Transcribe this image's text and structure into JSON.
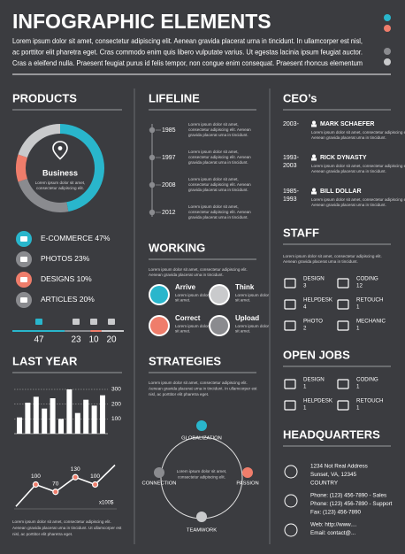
{
  "header": {
    "title": "INFOGRAPHIC ELEMENTS",
    "lines": [
      "Lorem ipsum dolor sit amet, consectetur adipiscing elit. Aenean gravida placerat urna in tincidunt. In ullamcorper est nisl,",
      "ac porttitor elit pharetra eget. Cras commodo enim quis libero vulputate varius. Ut egestas lacinia ipsum feugiat auctor.",
      "Cras a eleifend nulla. Praesent feugiat purus id felis tempor, non congue enim consequat. Praesent rhoncus elementum"
    ]
  },
  "products": {
    "title": "PRODUCTS",
    "center_label": "Business",
    "center_text": [
      "Lorem ipsum dolor sit amet,",
      "consectetur adipiscing elit."
    ],
    "items": [
      {
        "name": "E-COMMERCE",
        "value": 47,
        "value_label": "47%",
        "color": "#29b6cc"
      },
      {
        "name": "PHOTOS",
        "value": 23,
        "value_label": "23%",
        "color": "#8a8b8f"
      },
      {
        "name": "DESIGNS",
        "value": 10,
        "value_label": "10%",
        "color": "#ef7d6b"
      },
      {
        "name": "ARTICLES",
        "value": 20,
        "value_label": "20%",
        "color": "#c9cacc"
      }
    ]
  },
  "lifeline": {
    "title": "LIFELINE",
    "events": [
      {
        "year": "1985",
        "text": [
          "Lorem ipsum dolor sit amet,",
          "consectetur adipiscing elit. Aenean",
          "gravida placerat urna in tincidunt."
        ]
      },
      {
        "year": "1997",
        "text": [
          "Lorem ipsum dolor sit amet,",
          "consectetur adipiscing elit. Aenean",
          "gravida placerat urna in tincidunt."
        ]
      },
      {
        "year": "2008",
        "text": [
          "Lorem ipsum dolor sit amet,",
          "consectetur adipiscing elit. Aenean",
          "gravida placerat urna in tincidunt."
        ]
      },
      {
        "year": "2012",
        "text": [
          "Lorem ipsum dolor sit amet,",
          "consectetur adipiscing elit. Aenean",
          "gravida placerat urna in tincidunt."
        ]
      }
    ]
  },
  "ceos": {
    "title": "CEO’s",
    "entries": [
      {
        "years": [
          "2003-"
        ],
        "name": "MARK SCHAEFER",
        "text": [
          "Lorem ipsum dolor sit amet, consectetur adipiscing elit.",
          "Aenean gravida placerat urna in tincidunt."
        ]
      },
      {
        "years": [
          "1993-",
          "2003"
        ],
        "name": "RICK DYNASTY",
        "text": [
          "Lorem ipsum dolor sit amet, consectetur adipiscing elit.",
          "Aenean gravida placerat urna in tincidunt."
        ]
      },
      {
        "years": [
          "1985-",
          "1993"
        ],
        "name": "BILL DOLLAR",
        "text": [
          "Lorem ipsum dolor sit amet, consectetur adipiscing elit.",
          "Aenean gravida placerat urna in tincidunt."
        ]
      }
    ]
  },
  "working": {
    "title": "WORKING",
    "text": [
      "Lorem ipsum dolor sit amet, consectetur adipiscing elit.",
      "Aenean gravida placerat urna in tincidunt."
    ],
    "items": [
      {
        "label": "Arrive",
        "color": "#29b6cc",
        "text": [
          "Lorem ipsum dolor",
          "sit amet."
        ]
      },
      {
        "label": "Think",
        "color": "#c9cacc",
        "text": [
          "Lorem ipsum dolor",
          "sit amet."
        ]
      },
      {
        "label": "Correct",
        "color": "#ef7d6b",
        "text": [
          "Lorem ipsum dolor",
          "sit amet."
        ]
      },
      {
        "label": "Upload",
        "color": "#8a8b8f",
        "text": [
          "Lorem ipsum dolor",
          "sit amet."
        ]
      }
    ]
  },
  "staff": {
    "title": "STAFF",
    "text": [
      "Lorem ipsum dolor sit amet, consectetur adipiscing elit.",
      "Aenean gravida placerat urna in tincidunt."
    ],
    "roles": [
      {
        "name": "DESIGN",
        "count": 3
      },
      {
        "name": "CODING",
        "count": 12
      },
      {
        "name": "HELPDESK",
        "count": 4
      },
      {
        "name": "RETOUCH",
        "count": 1
      },
      {
        "name": "PHOTO",
        "count": 2
      },
      {
        "name": "MECHANIC",
        "count": 1
      }
    ]
  },
  "last_year": {
    "title": "LAST YEAR",
    "bars": {
      "values": [
        110,
        210,
        250,
        170,
        240,
        100,
        300,
        140,
        230,
        190,
        260
      ],
      "ylim": [
        0,
        300
      ],
      "yticks": [
        100,
        200,
        300
      ]
    },
    "line": {
      "values": [
        10,
        100,
        70,
        130,
        100,
        180
      ],
      "value_labels": [
        null,
        "100",
        "70",
        "130",
        "100",
        null
      ],
      "ylim": [
        0,
        200
      ],
      "unit": "x100$"
    },
    "text": [
      "Lorem ipsum dolor sit amet, consectetur adipiscing elit.",
      "Aenean gravida placerat urna in tincidunt. Ut ullamcorper est",
      "nisl, ac porttitor elit pharetra eget."
    ]
  },
  "strategies": {
    "title": "STRATEGIES",
    "text": [
      "Lorem ipsum dolor sit amet, consectetur adipiscing elit.",
      "Aenean gravida placerat urna in tincidunt. In ullamcorper est",
      "nisl, ac porttitor elit pharetra eget."
    ],
    "cycle": [
      "GLOBALIZATION",
      "PASSION",
      "TEAMWORK",
      "CONNECTION"
    ],
    "center_text": [
      "Lorem ipsum dolor sit amet,",
      "consectetur adipiscing elit."
    ]
  },
  "open_jobs": {
    "title": "OPEN JOBS",
    "roles": [
      {
        "name": "DESIGN",
        "count": 1
      },
      {
        "name": "CODING",
        "count": 1
      },
      {
        "name": "HELPDESK",
        "count": 1
      },
      {
        "name": "RETOUCH",
        "count": 1
      }
    ]
  },
  "headquarters": {
    "title": "HEADQUARTERS",
    "groups": [
      [
        "1234 Not Real Address",
        "Sunset, VA, 12345",
        "COUNTRY"
      ],
      [
        "Phone: (123) 456-7890 - Sales",
        "Phone: (123) 456-7890 - Support",
        "Fax: (123) 456-7890"
      ],
      [
        "Web: http://www....",
        "Email: contact@..."
      ]
    ]
  }
}
